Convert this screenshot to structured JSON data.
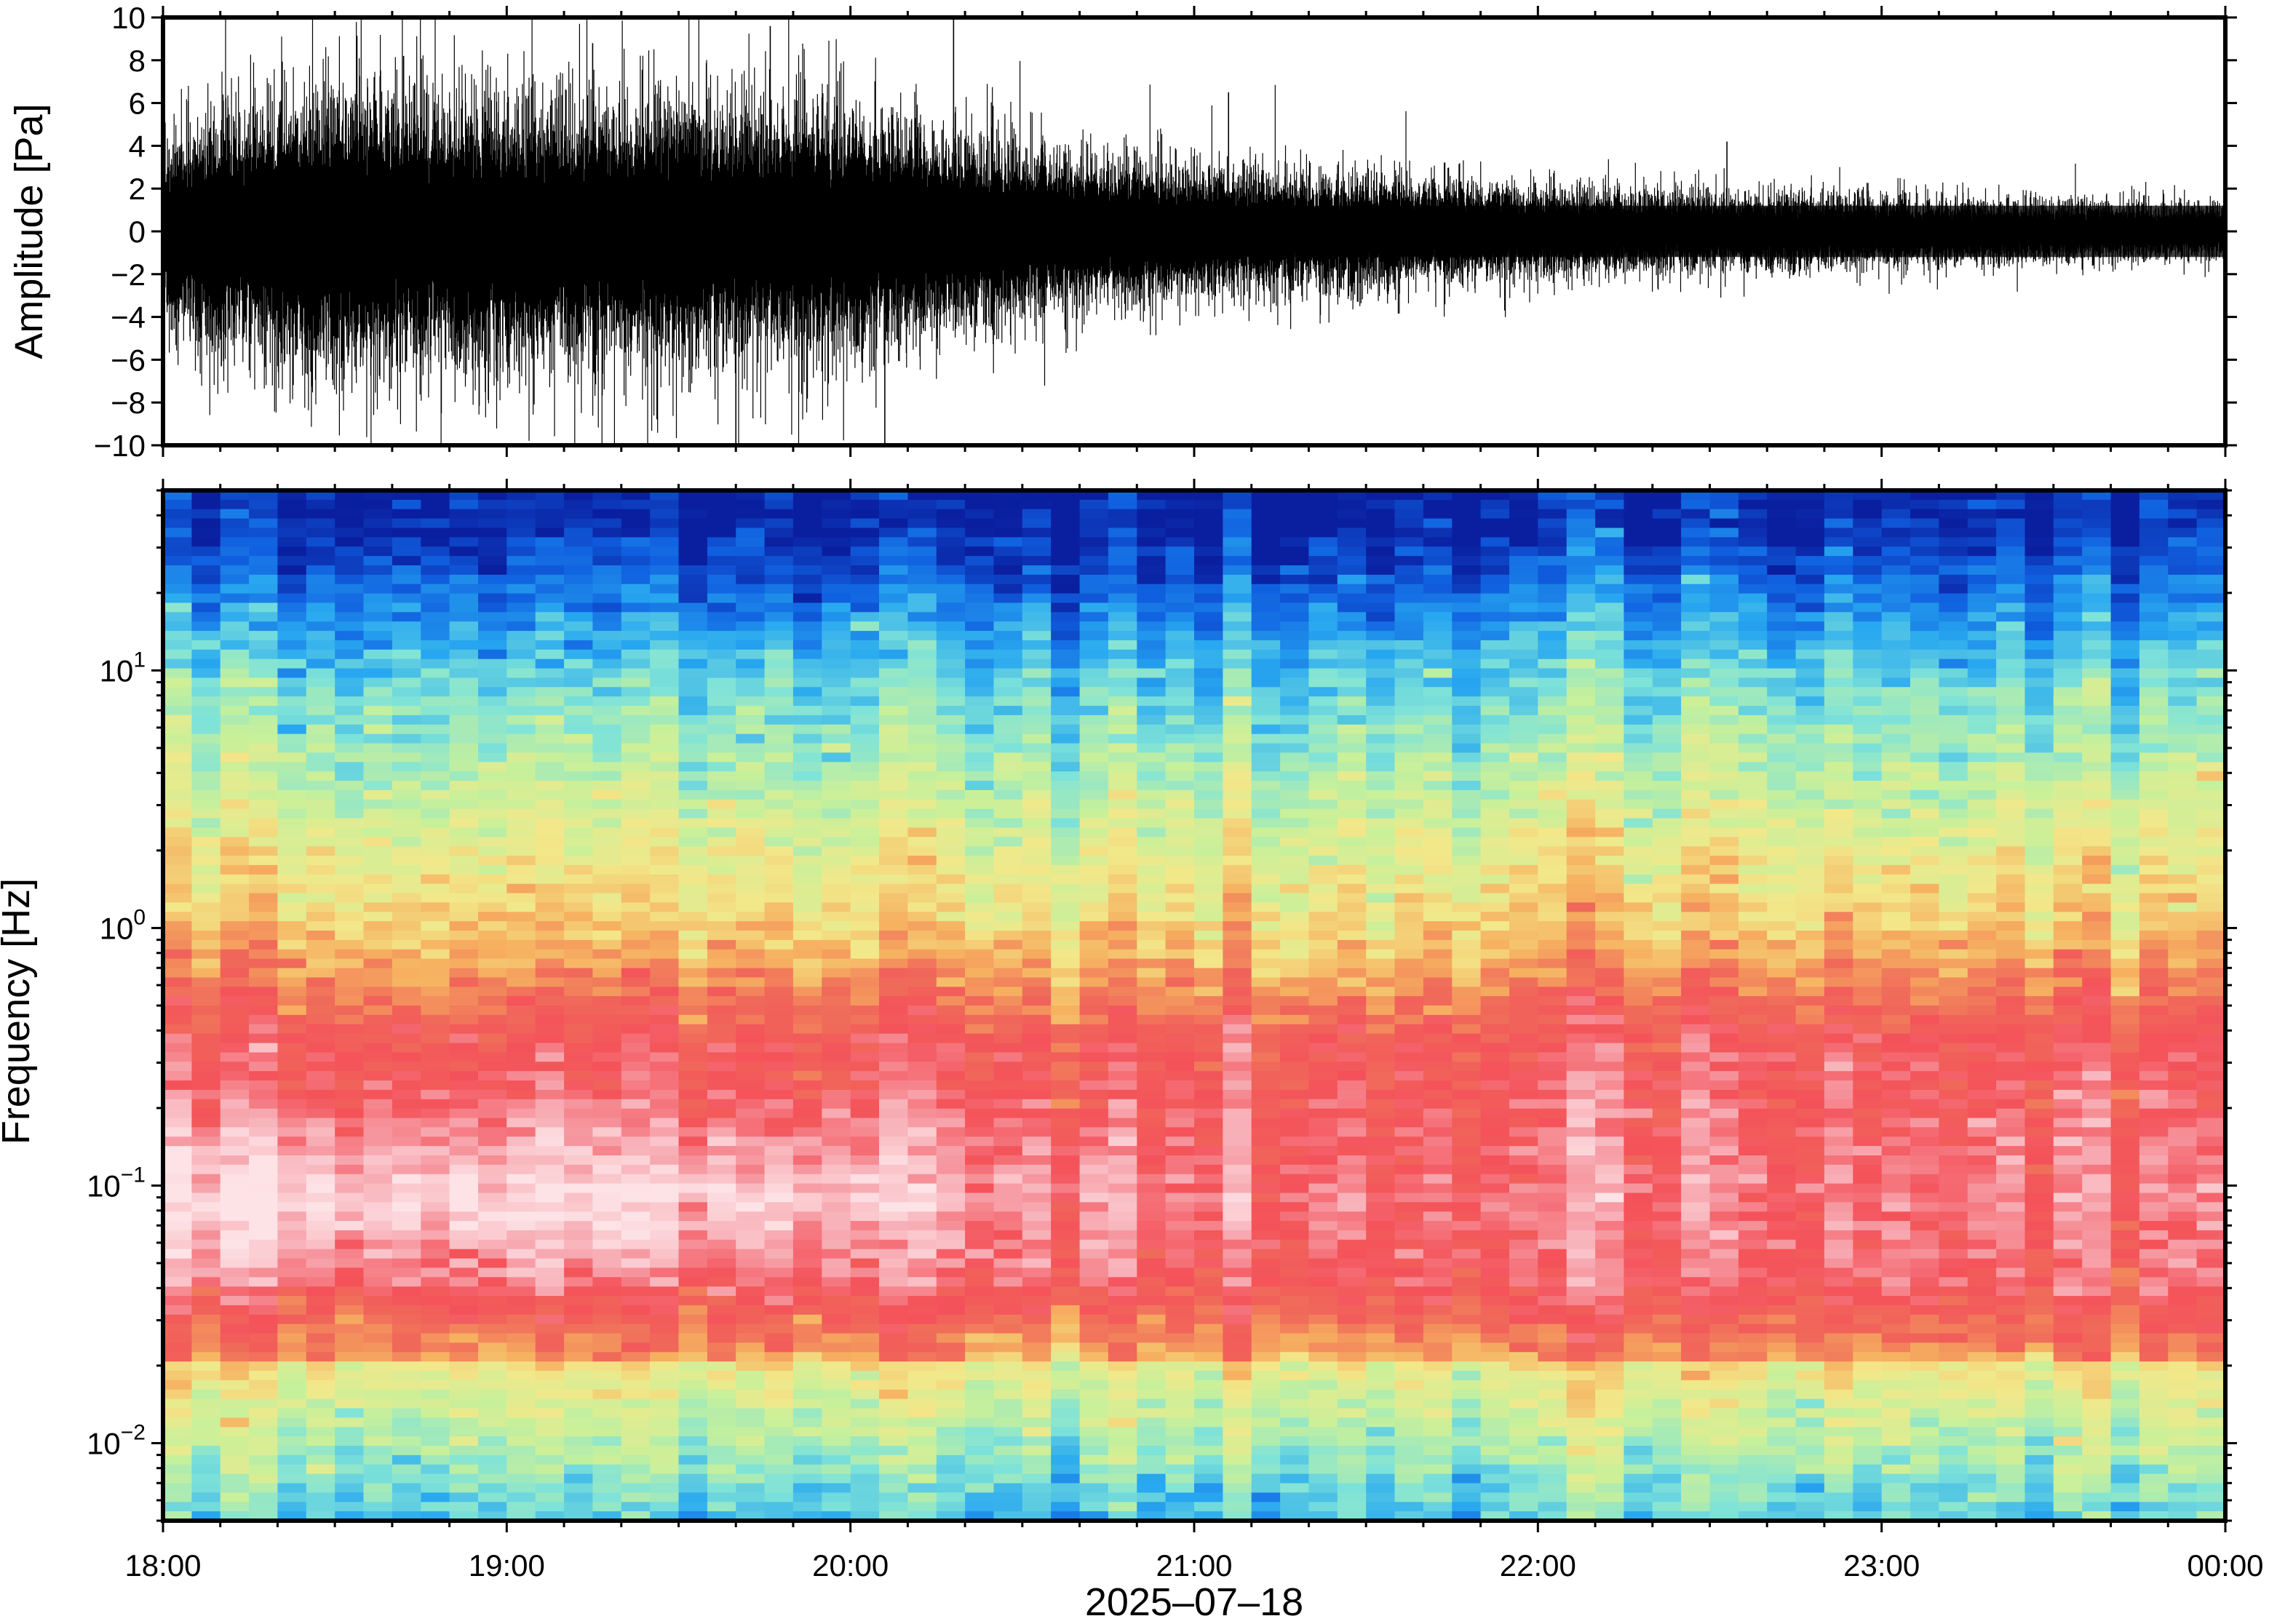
{
  "chart_data": [
    {
      "type": "line",
      "title": "",
      "ylabel": "Amplitude [Pa]",
      "xlabel": "",
      "ylim": [
        -10,
        10
      ],
      "yticks": [
        10,
        8,
        6,
        4,
        2,
        0,
        -2,
        -4,
        -6,
        -8,
        -10
      ],
      "ytick_labels": [
        "10",
        "8",
        "6",
        "4",
        "2",
        "0",
        "−2",
        "−4",
        "−6",
        "−8",
        "−10"
      ],
      "xlim": [
        "18:00",
        "00:00"
      ],
      "series": [
        {
          "color": "#000000",
          "envelope_x_hours": [
            18.0,
            18.5,
            19.0,
            19.5,
            20.0,
            20.5,
            21.0,
            21.5,
            22.0,
            22.5,
            23.0,
            23.5,
            24.0
          ],
          "envelope_amplitude_pa": [
            4.5,
            6.5,
            6.0,
            6.0,
            5.5,
            4.0,
            3.0,
            2.5,
            2.0,
            1.8,
            1.6,
            1.4,
            1.2
          ],
          "noted_peaks_pa": [
            {
              "t": "18:42",
              "v": 8.2
            },
            {
              "t": "19:15",
              "v": 8.8
            },
            {
              "t": "19:46",
              "v": 9.6
            },
            {
              "t": "20:18",
              "v": 10.0
            },
            {
              "t": "21:06",
              "v": 6.5
            },
            {
              "t": "22:33",
              "v": 4.2
            },
            {
              "t": "20:06",
              "v": -10.0
            },
            {
              "t": "19:40",
              "v": -10.0
            }
          ]
        }
      ]
    },
    {
      "type": "heatmap",
      "title": "",
      "ylabel": "Frequency [Hz]",
      "xlabel": "2025–07–18",
      "xticks": [
        "18:00",
        "19:00",
        "20:00",
        "21:00",
        "22:00",
        "23:00",
        "00:00"
      ],
      "y_scale": "log",
      "ylim": [
        0.005,
        50
      ],
      "yticks": [
        {
          "base": "10",
          "exp": "1",
          "value": 10
        },
        {
          "base": "10",
          "exp": "0",
          "value": 1
        },
        {
          "base": "10",
          "exp": "−1",
          "value": 0.1
        },
        {
          "base": "10",
          "exp": "−2",
          "value": 0.01
        }
      ],
      "colormap": "rainbow (blue = low power, pink/white = high power)",
      "color_stops": [
        "#0a1fa0",
        "#1060e0",
        "#28a8f0",
        "#7fe3d8",
        "#c8f09a",
        "#f2e88a",
        "#f6b060",
        "#f06a5a",
        "#f4525a",
        "#f7a8b0",
        "#fde3e6"
      ],
      "power_features": [
        "Blue (low power) above ~10 Hz",
        "Yellow-green around 1-10 Hz",
        "Red band around 0.2-0.5 Hz",
        "Pink/white maximum around 0.04-0.15 Hz between 18:00 and 20:30",
        "Yellow-green patches below 0.02 Hz"
      ]
    }
  ]
}
